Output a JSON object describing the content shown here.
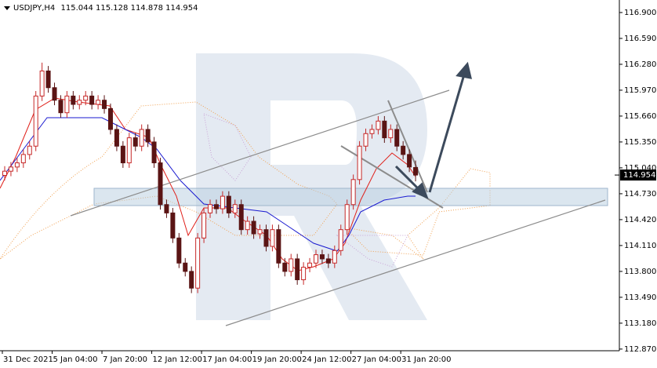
{
  "chart_data": {
    "type": "candlestick",
    "title": "USDJPY,H4",
    "categories": [
      "31 Dec 2021",
      null,
      null,
      null,
      null,
      null,
      null,
      null,
      "5 Jan 04:00",
      null,
      null,
      null,
      null,
      null,
      null,
      null,
      "7 Jan 20:00",
      null,
      null,
      null,
      null,
      null,
      null,
      null,
      "12 Jan 12:00",
      null,
      null,
      null,
      null,
      null,
      null,
      null,
      "17 Jan 04:00",
      null,
      null,
      null,
      null,
      null,
      null,
      null,
      "19 Jan 20:00",
      null,
      null,
      null,
      null,
      null,
      null,
      null,
      "24 Jan 12:00",
      null,
      null,
      null,
      null,
      null,
      null,
      null,
      "27 Jan 04:00",
      null,
      null,
      null,
      null,
      null,
      null,
      null,
      "31 Jan 20:00",
      null,
      null
    ],
    "open": [
      114.95,
      115.0,
      115.05,
      115.1,
      115.2,
      115.3,
      115.9,
      116.2,
      116.0,
      115.85,
      115.7,
      115.9,
      115.8,
      115.85,
      115.9,
      115.8,
      115.85,
      115.75,
      115.5,
      115.3,
      115.1,
      115.4,
      115.3,
      115.5,
      115.35,
      115.1,
      114.6,
      114.5,
      114.2,
      113.9,
      113.8,
      113.6,
      114.2,
      114.5,
      114.6,
      114.55,
      114.7,
      114.5,
      114.6,
      114.3,
      114.4,
      114.25,
      114.3,
      114.1,
      114.3,
      113.9,
      113.8,
      113.95,
      113.7,
      113.85,
      113.9,
      114.0,
      113.95,
      113.9,
      114.05,
      114.3,
      114.6,
      114.9,
      115.3,
      115.45,
      115.5,
      115.6,
      115.4,
      115.5,
      115.3,
      115.2,
      115.044
    ],
    "high": [
      115.06,
      115.11,
      115.16,
      115.26,
      115.36,
      115.96,
      116.3,
      116.26,
      116.06,
      115.91,
      115.96,
      115.96,
      115.91,
      115.96,
      115.96,
      115.91,
      115.91,
      115.81,
      115.56,
      115.36,
      115.46,
      115.46,
      115.56,
      115.56,
      115.41,
      115.16,
      114.66,
      114.56,
      114.26,
      113.96,
      113.86,
      114.26,
      114.56,
      114.66,
      114.66,
      114.76,
      114.76,
      114.66,
      114.66,
      114.46,
      114.46,
      114.36,
      114.36,
      114.36,
      114.36,
      113.96,
      114.01,
      114.01,
      113.91,
      113.96,
      114.06,
      114.06,
      114.01,
      114.11,
      114.36,
      114.66,
      114.96,
      115.36,
      115.51,
      115.56,
      115.66,
      115.66,
      115.56,
      115.56,
      115.36,
      115.26,
      115.128
    ],
    "low": [
      114.89,
      114.94,
      114.99,
      115.04,
      115.14,
      115.24,
      115.84,
      115.94,
      115.79,
      115.64,
      115.64,
      115.74,
      115.74,
      115.79,
      115.74,
      115.74,
      115.69,
      115.44,
      115.24,
      115.04,
      115.04,
      115.24,
      115.24,
      115.29,
      115.04,
      114.54,
      114.44,
      114.14,
      113.84,
      113.74,
      113.54,
      113.54,
      114.14,
      114.44,
      114.49,
      114.49,
      114.44,
      114.44,
      114.24,
      114.24,
      114.19,
      114.19,
      114.04,
      114.04,
      113.84,
      113.74,
      113.74,
      113.64,
      113.64,
      113.79,
      113.84,
      113.89,
      113.84,
      113.84,
      113.99,
      114.24,
      114.54,
      114.84,
      115.24,
      115.39,
      115.44,
      115.34,
      115.34,
      115.24,
      115.14,
      114.99,
      114.878
    ],
    "close": [
      115.0,
      115.05,
      115.1,
      115.2,
      115.3,
      115.9,
      116.2,
      116.0,
      115.85,
      115.7,
      115.9,
      115.8,
      115.85,
      115.9,
      115.8,
      115.85,
      115.75,
      115.5,
      115.3,
      115.1,
      115.4,
      115.3,
      115.5,
      115.35,
      115.1,
      114.6,
      114.5,
      114.2,
      113.9,
      113.8,
      113.6,
      114.2,
      114.5,
      114.6,
      114.55,
      114.7,
      114.5,
      114.6,
      114.3,
      114.4,
      114.25,
      114.3,
      114.1,
      114.3,
      113.9,
      113.8,
      113.95,
      113.7,
      113.85,
      113.9,
      114.0,
      113.95,
      113.9,
      114.05,
      114.3,
      114.6,
      114.9,
      115.3,
      115.45,
      115.5,
      115.6,
      115.4,
      115.5,
      115.3,
      115.2,
      115.05,
      114.954
    ],
    "up_color": "#c62828",
    "down_color": "#5a1414",
    "ylim": [
      112.85,
      117.05
    ],
    "yticks": [
      {
        "value": 116.9,
        "label": "116.900"
      },
      {
        "value": 116.59,
        "label": "116.590"
      },
      {
        "value": 116.28,
        "label": "116.280"
      },
      {
        "value": 115.97,
        "label": "115.970"
      },
      {
        "value": 115.66,
        "label": "115.660"
      },
      {
        "value": 115.35,
        "label": "115.350"
      },
      {
        "value": 115.04,
        "label": "115.040"
      },
      {
        "value": 114.73,
        "label": "114.730"
      },
      {
        "value": 114.42,
        "label": "114.420"
      },
      {
        "value": 114.11,
        "label": "114.110"
      },
      {
        "value": 113.8,
        "label": "113.800"
      },
      {
        "value": 113.49,
        "label": "113.490"
      },
      {
        "value": 113.18,
        "label": "113.180"
      },
      {
        "value": 112.87,
        "label": "112.870"
      }
    ]
  }
}
